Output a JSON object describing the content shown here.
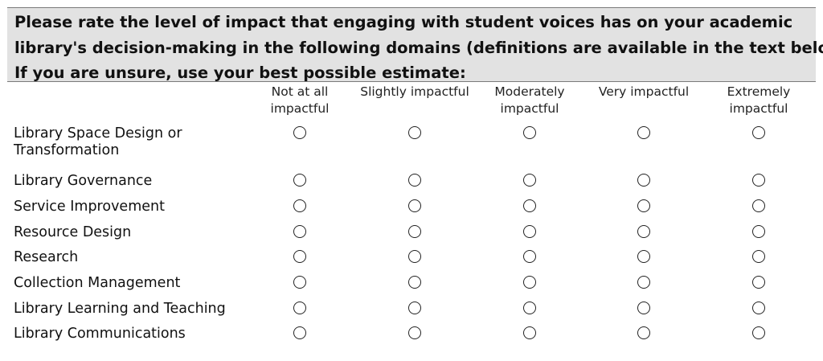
{
  "question": {
    "lines": [
      "Please rate the level of impact that engaging with student voices has on your academic",
      "library's decision-making in the following domains (definitions are available in the text below).",
      "If you are unsure, use your best possible estimate:"
    ]
  },
  "scale": [
    {
      "line1": "Not at all",
      "line2": "impactful"
    },
    {
      "line1": "Slightly impactful",
      "line2": ""
    },
    {
      "line1": "Moderately",
      "line2": "impactful"
    },
    {
      "line1": "Very impactful",
      "line2": ""
    },
    {
      "line1": "Extremely",
      "line2": "impactful"
    }
  ],
  "domains": [
    {
      "line1": "Library Space Design or",
      "line2": "Transformation"
    },
    {
      "line1": "Library Governance",
      "line2": ""
    },
    {
      "line1": "Service Improvement",
      "line2": ""
    },
    {
      "line1": "Resource Design",
      "line2": ""
    },
    {
      "line1": "Research",
      "line2": ""
    },
    {
      "line1": "Collection Management",
      "line2": ""
    },
    {
      "line1": "Library Learning and Teaching",
      "line2": ""
    },
    {
      "line1": "Library Communications",
      "line2": ""
    }
  ],
  "selections": [
    null,
    null,
    null,
    null,
    null,
    null,
    null,
    null
  ]
}
